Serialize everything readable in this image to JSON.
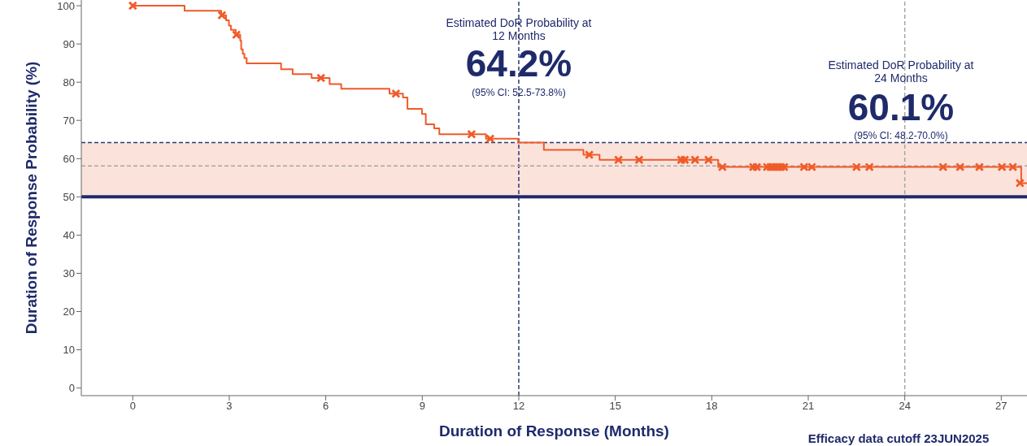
{
  "chart_data": {
    "type": "line",
    "xlabel": "Duration of Response (Months)",
    "ylabel": "Duration of Response Probability (%)",
    "xlim": [
      -1.6,
      27.8
    ],
    "xticks": [
      0,
      3,
      6,
      9,
      12,
      15,
      18,
      21,
      24,
      27
    ],
    "ylim": [
      -2,
      101.5
    ],
    "yticks": [
      0,
      10,
      20,
      30,
      40,
      50,
      60,
      70,
      80,
      90,
      100
    ],
    "grid": false,
    "legend": false,
    "series": [
      {
        "type": "step",
        "color": "#f05a28",
        "marker": "none",
        "x": [
          0,
          1.61,
          2.75,
          2.9,
          2.99,
          3.05,
          3.2,
          3.34,
          3.37,
          3.42,
          3.47,
          3.54,
          4.61,
          4.97,
          5.56,
          6.12,
          6.48,
          7.98,
          8.4,
          8.54,
          8.99,
          9.11,
          9.37,
          9.53,
          10.98,
          11.98,
          12.78,
          14.01,
          14.51,
          18.2,
          27.62,
          27.8
        ],
        "values": [
          100,
          98.7,
          97.5,
          96.2,
          94.8,
          93.7,
          92.4,
          90.9,
          88.6,
          87.4,
          86.3,
          84.9,
          83.4,
          82.1,
          81.1,
          79.5,
          78.3,
          77.0,
          76.0,
          73.0,
          71.7,
          69.0,
          67.9,
          66.4,
          65.2,
          64.2,
          62.3,
          61.0,
          59.7,
          57.8,
          53.6,
          53.6
        ]
      },
      {
        "type": "scatter",
        "color": "#f05a28",
        "marker": "cross",
        "x": [
          0,
          2.77,
          3.22,
          5.85,
          8.18,
          10.53,
          11.11,
          14.19,
          15.1,
          15.74,
          17.05,
          17.16,
          17.48,
          17.9,
          18.33,
          19.29,
          19.4,
          19.72,
          19.83,
          19.93,
          20.04,
          20.15,
          20.25,
          20.87,
          21.11,
          22.5,
          22.9,
          25.19,
          25.72,
          26.32,
          27.02,
          27.36,
          27.58
        ],
        "values": [
          100,
          97.5,
          92.4,
          81.1,
          77.0,
          66.4,
          65.2,
          61.0,
          59.7,
          59.7,
          59.7,
          59.7,
          59.7,
          59.7,
          57.8,
          57.8,
          57.8,
          57.8,
          57.8,
          57.8,
          57.8,
          57.8,
          57.8,
          57.8,
          57.8,
          57.8,
          57.8,
          57.8,
          57.8,
          57.8,
          57.8,
          57.8,
          53.6
        ]
      }
    ],
    "ref_lines": [
      {
        "axis": "x",
        "value": 12,
        "color": "#2b3a75",
        "line_style": "dashed"
      },
      {
        "axis": "x",
        "value": 24,
        "color": "#a6a6a6",
        "line_style": "dashed"
      },
      {
        "axis": "y",
        "value": 64.2,
        "color": "#2b3a75",
        "line_style": "dashed"
      },
      {
        "axis": "y",
        "value": 58.1,
        "color": "#a6a6a6",
        "line_style": "dashed"
      },
      {
        "axis": "y",
        "value": 50,
        "color": "#1f2a6b",
        "line_style": "solid"
      }
    ],
    "bands": [
      {
        "axis": "y",
        "from": 50,
        "to": 64.2,
        "color": "#fbe3dc"
      }
    ],
    "annotations": [
      "Estimated DoR Probability at 12 Months",
      "64.2%",
      "(95% CI: 52.5-73.8%)",
      "Estimated DoR Probability at 24 Months",
      "60.1%",
      "(95% CI: 48.2-70.0%)",
      "Efficacy data cutoff 23JUN2025"
    ]
  }
}
